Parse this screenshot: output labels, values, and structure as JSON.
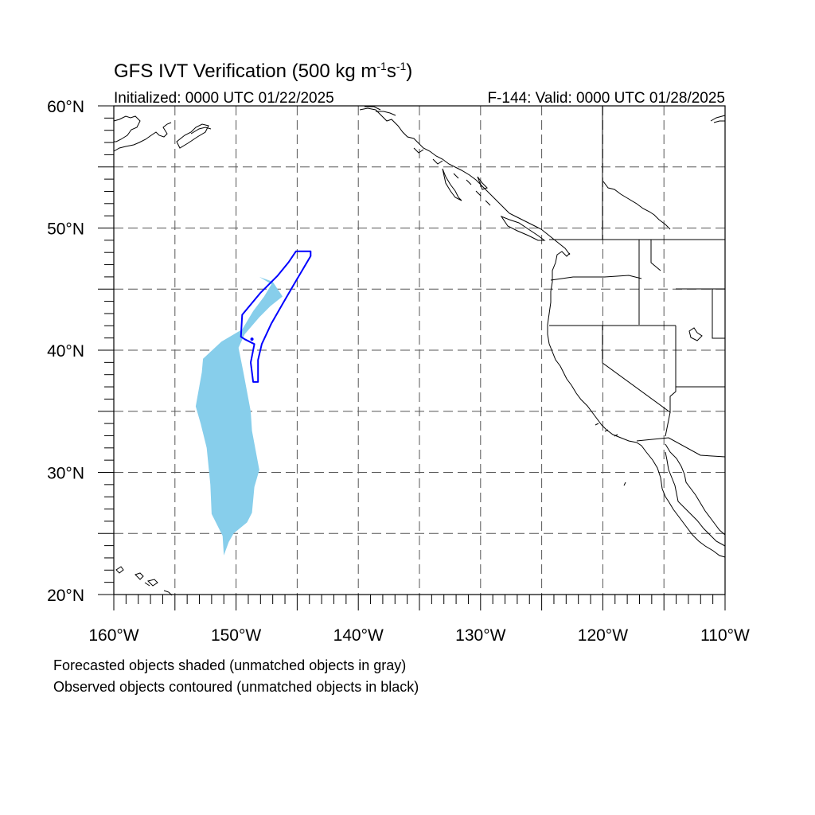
{
  "title": {
    "main": "GFS IVT Verification (500 kg m",
    "sup1": "-1",
    "mid": "s",
    "sup2": "-1",
    "close": ")"
  },
  "subtitle_left": "Initialized: 0000 UTC 01/22/2025",
  "subtitle_right": "F-144: Valid: 0000 UTC 01/28/2025",
  "map": {
    "lon_range": [
      -160,
      -110
    ],
    "lat_range": [
      20,
      60
    ],
    "lon_ticks": [
      {
        "value": -160,
        "label": "160°W"
      },
      {
        "value": -150,
        "label": "150°W"
      },
      {
        "value": -140,
        "label": "140°W"
      },
      {
        "value": -130,
        "label": "130°W"
      },
      {
        "value": -120,
        "label": "120°W"
      },
      {
        "value": -110,
        "label": "110°W"
      }
    ],
    "lat_ticks": [
      {
        "value": 20,
        "label": "20°N"
      },
      {
        "value": 30,
        "label": "30°N"
      },
      {
        "value": 40,
        "label": "40°N"
      },
      {
        "value": 50,
        "label": "50°N"
      },
      {
        "value": 60,
        "label": "60°N"
      }
    ],
    "gridlines": {
      "lon_step": 5,
      "lat_step": 5,
      "style": "dashed"
    },
    "colors": {
      "forecast_fill": "#87ceeb",
      "observed_contour": "#0000ff",
      "coastline": "#000000",
      "grid": "#555555"
    },
    "forecast_object": [
      [
        -148.1,
        46.0
      ],
      [
        -147.0,
        45.6
      ],
      [
        -146.2,
        44.4
      ],
      [
        -147.2,
        43.6
      ],
      [
        -148.1,
        42.7
      ],
      [
        -149.3,
        41.3
      ],
      [
        -149.8,
        40.2
      ],
      [
        -149.4,
        38.2
      ],
      [
        -148.8,
        35.0
      ],
      [
        -148.7,
        33.4
      ],
      [
        -148.1,
        30.2
      ],
      [
        -148.5,
        28.8
      ],
      [
        -148.7,
        26.7
      ],
      [
        -149.1,
        25.9
      ],
      [
        -150.2,
        25.0
      ],
      [
        -150.6,
        24.3
      ],
      [
        -151.0,
        23.2
      ],
      [
        -151.1,
        24.8
      ],
      [
        -152.0,
        26.6
      ],
      [
        -152.1,
        29.0
      ],
      [
        -152.4,
        32.0
      ],
      [
        -152.9,
        34.0
      ],
      [
        -153.3,
        35.4
      ],
      [
        -152.8,
        38.2
      ],
      [
        -152.7,
        39.3
      ],
      [
        -151.2,
        40.7
      ],
      [
        -149.5,
        41.7
      ],
      [
        -148.6,
        43.2
      ],
      [
        -147.7,
        44.4
      ],
      [
        -147.1,
        45.4
      ]
    ],
    "observed_object": [
      [
        -145.1,
        48.1
      ],
      [
        -143.9,
        48.1
      ],
      [
        -143.9,
        47.7
      ],
      [
        -145.2,
        45.5
      ],
      [
        -146.3,
        43.6
      ],
      [
        -147.1,
        42.2
      ],
      [
        -147.9,
        40.5
      ],
      [
        -148.2,
        39.2
      ],
      [
        -148.2,
        37.4
      ],
      [
        -148.6,
        37.4
      ],
      [
        -148.8,
        39.0
      ],
      [
        -148.5,
        40.5
      ],
      [
        -149.3,
        40.9
      ],
      [
        -149.6,
        41.1
      ],
      [
        -149.5,
        42.9
      ],
      [
        -148.0,
        44.7
      ],
      [
        -146.6,
        46.1
      ],
      [
        -145.7,
        47.2
      ]
    ]
  },
  "notes": {
    "line1": "Forecasted objects shaded (unmatched objects in gray)",
    "line2": "Observed objects contoured (unmatched objects in black)"
  }
}
